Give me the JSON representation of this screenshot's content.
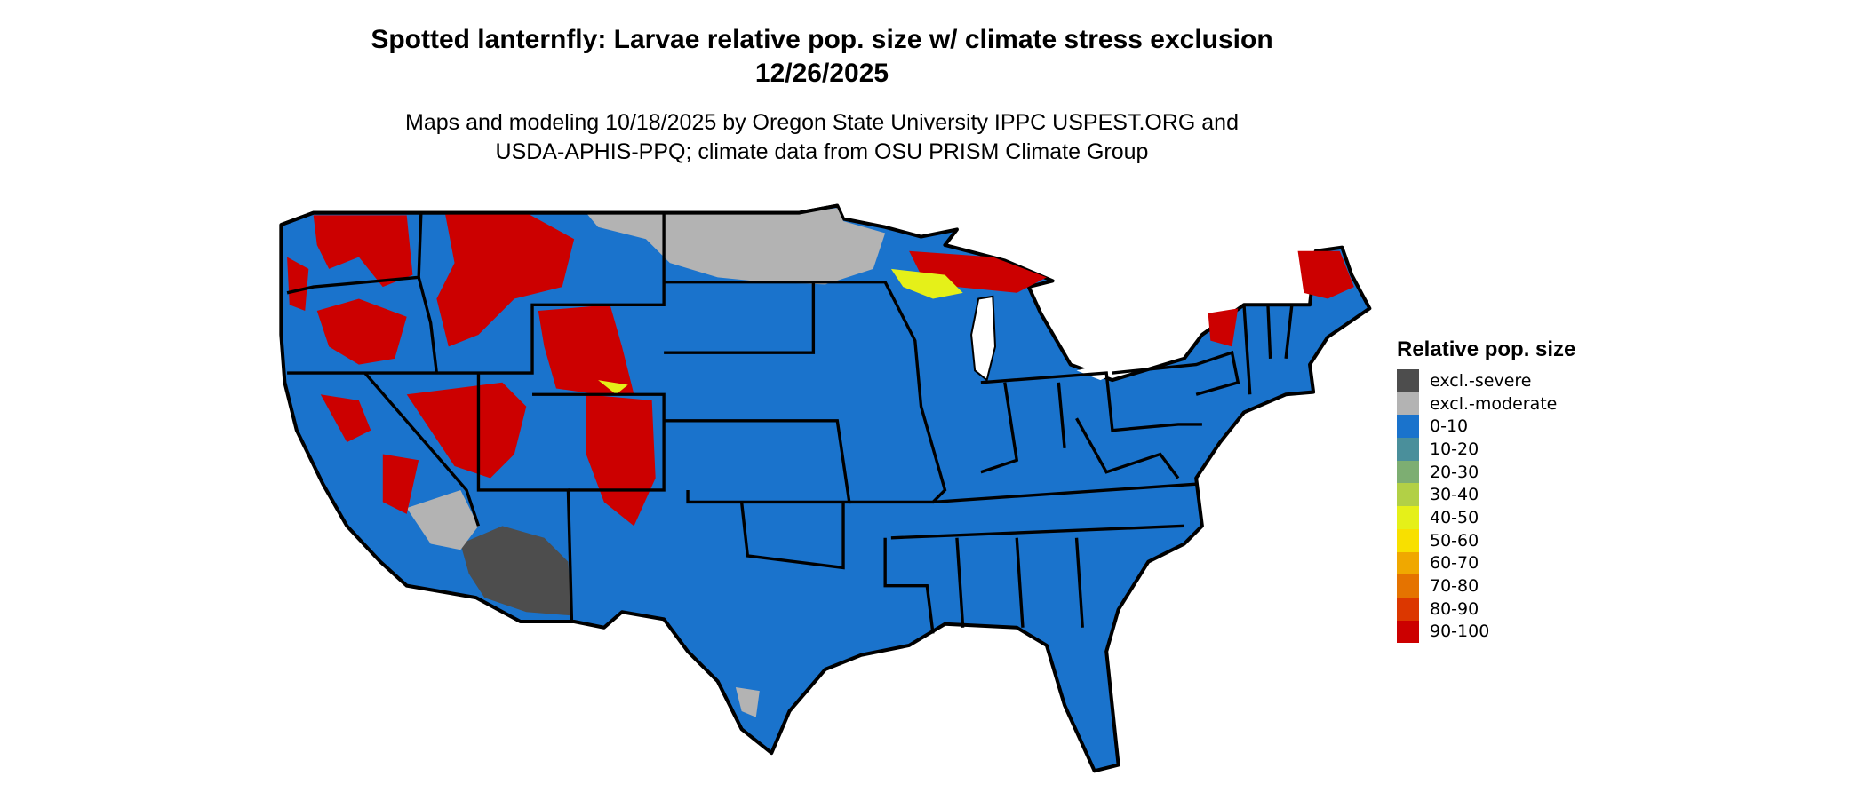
{
  "title": "Spotted lanternfly: Larvae relative pop. size w/ climate stress exclusion 12/26/2025",
  "subtitle_line1": "Maps and modeling 10/18/2025 by Oregon State University IPPC USPEST.ORG and",
  "subtitle_line2": "USDA-APHIS-PPQ; climate data from OSU PRISM Climate Group",
  "legend": {
    "title": "Relative pop. size",
    "items": [
      {
        "label": "excl.-severe",
        "color": "#4d4d4d"
      },
      {
        "label": "excl.-moderate",
        "color": "#b3b3b3"
      },
      {
        "label": "0-10",
        "color": "#1a73cc"
      },
      {
        "label": "10-20",
        "color": "#4a8f9b"
      },
      {
        "label": "20-30",
        "color": "#7dae72"
      },
      {
        "label": "30-40",
        "color": "#b2d046"
      },
      {
        "label": "40-50",
        "color": "#e5f019"
      },
      {
        "label": "50-60",
        "color": "#f8e000"
      },
      {
        "label": "60-70",
        "color": "#f0a800"
      },
      {
        "label": "70-80",
        "color": "#e57300"
      },
      {
        "label": "80-90",
        "color": "#dc3700"
      },
      {
        "label": "90-100",
        "color": "#cc0000"
      }
    ]
  }
}
